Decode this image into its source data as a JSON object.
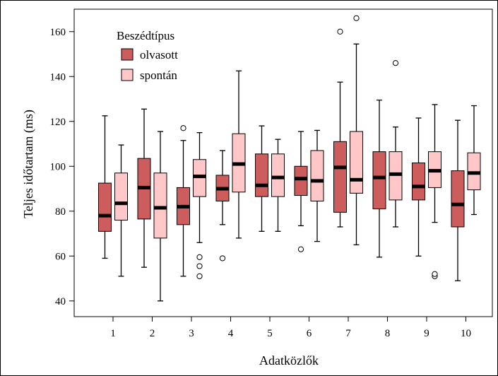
{
  "chart_data": {
    "type": "boxplot",
    "xlabel": "Adatközlők",
    "ylabel": "Teljes időtartam (ms)",
    "categories": [
      "1",
      "2",
      "3",
      "4",
      "5",
      "6",
      "7",
      "8",
      "9",
      "10"
    ],
    "ylim": [
      33,
      170
    ],
    "yticks": [
      40,
      60,
      80,
      100,
      120,
      140,
      160
    ],
    "grid": false,
    "legend": {
      "title": "Beszédtípus",
      "position": "top-left",
      "items": [
        {
          "label": "olvasott",
          "color": "#cd5c5c"
        },
        {
          "label": "spontán",
          "color": "#ffc7c7"
        }
      ]
    },
    "series": [
      {
        "name": "olvasott",
        "color": "#cd5c5c",
        "boxes": [
          {
            "whislo": 59,
            "q1": 71,
            "med": 78,
            "q3": 92.5,
            "whishi": 122.5,
            "fliers": []
          },
          {
            "whislo": 55,
            "q1": 76.5,
            "med": 90.5,
            "q3": 103.5,
            "whishi": 125.5,
            "fliers": []
          },
          {
            "whislo": 51,
            "q1": 74,
            "med": 82,
            "q3": 90.5,
            "whishi": 111.5,
            "fliers": [
              117
            ]
          },
          {
            "whislo": 74,
            "q1": 84.5,
            "med": 90,
            "q3": 96,
            "whishi": 107,
            "fliers": [
              59
            ]
          },
          {
            "whislo": 71,
            "q1": 86.5,
            "med": 91.5,
            "q3": 105.5,
            "whishi": 118,
            "fliers": []
          },
          {
            "whislo": 73.5,
            "q1": 87,
            "med": 94.5,
            "q3": 100,
            "whishi": 115.5,
            "fliers": [
              63
            ]
          },
          {
            "whislo": 73,
            "q1": 79.5,
            "med": 99.5,
            "q3": 111,
            "whishi": 137.5,
            "fliers": [
              160
            ]
          },
          {
            "whislo": 59.5,
            "q1": 81,
            "med": 95,
            "q3": 106.5,
            "whishi": 129.5,
            "fliers": []
          },
          {
            "whislo": 60,
            "q1": 85,
            "med": 91,
            "q3": 101.5,
            "whishi": 121.5,
            "fliers": []
          },
          {
            "whislo": 49,
            "q1": 73,
            "med": 83,
            "q3": 98,
            "whishi": 120.5,
            "fliers": []
          }
        ]
      },
      {
        "name": "spontán",
        "color": "#ffc7c7",
        "boxes": [
          {
            "whislo": 51,
            "q1": 76,
            "med": 83.5,
            "q3": 97,
            "whishi": 109.5,
            "fliers": []
          },
          {
            "whislo": 40,
            "q1": 68,
            "med": 81.5,
            "q3": 97,
            "whishi": 115.5,
            "fliers": []
          },
          {
            "whislo": 66,
            "q1": 86.5,
            "med": 95.5,
            "q3": 103,
            "whishi": 115,
            "fliers": [
              51,
              55.5,
              59.5
            ]
          },
          {
            "whislo": 68,
            "q1": 88.5,
            "med": 101,
            "q3": 114.5,
            "whishi": 142.5,
            "fliers": []
          },
          {
            "whislo": 71,
            "q1": 86.5,
            "med": 95,
            "q3": 105.5,
            "whishi": 112,
            "fliers": []
          },
          {
            "whislo": 66.5,
            "q1": 84.5,
            "med": 93.5,
            "q3": 107,
            "whishi": 116,
            "fliers": []
          },
          {
            "whislo": 65,
            "q1": 88,
            "med": 94,
            "q3": 115.5,
            "whishi": 154.5,
            "fliers": [
              166
            ]
          },
          {
            "whislo": 73,
            "q1": 85,
            "med": 96.5,
            "q3": 106.5,
            "whishi": 117.5,
            "fliers": [
              146
            ]
          },
          {
            "whislo": 75,
            "q1": 90.5,
            "med": 98,
            "q3": 106.5,
            "whishi": 127.5,
            "fliers": [
              51,
              52
            ]
          },
          {
            "whislo": 78.5,
            "q1": 89.5,
            "med": 97,
            "q3": 106,
            "whishi": 127,
            "fliers": []
          }
        ]
      }
    ]
  }
}
